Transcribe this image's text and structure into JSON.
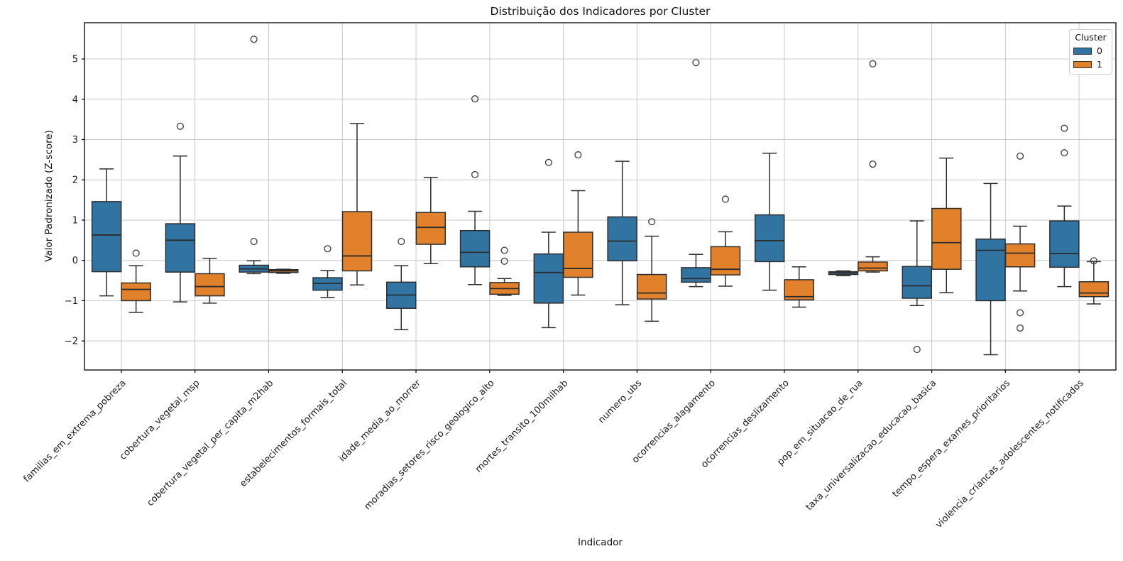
{
  "chart_data": {
    "type": "boxplot",
    "title": "Distribuição dos Indicadores por Cluster",
    "xlabel": "Indicador",
    "ylabel": "Valor Padronizado (Z-score)",
    "ylim": [
      -2.72,
      5.9
    ],
    "yticks": [
      5,
      4,
      3,
      2,
      1,
      0,
      -1,
      -2
    ],
    "grid": true,
    "colors": {
      "cluster0": "#3274A1",
      "cluster1": "#E1812C",
      "grid": "#c9c9c9",
      "spine": "#000000",
      "box_edge": "#2d2d2d",
      "flier_edge": "#3a3a3a",
      "text": "#1a1a1a"
    },
    "legend": {
      "title": "Cluster",
      "position": "upper right",
      "entries": [
        {
          "label": "0",
          "color": "#3274A1"
        },
        {
          "label": "1",
          "color": "#E1812C"
        }
      ]
    },
    "categories": [
      "familias_em_extrema_pobreza",
      "cobertura_vegetal_msp",
      "cobertura_vegetal_per_capita_m2hab",
      "estabelecimentos_formais_total",
      "idade_media_ao_morrer",
      "moradias_setores_risco_geologico_alto",
      "mortes_transito_100milhab",
      "numero_ubs",
      "ocorrencias_alagamento",
      "ocorrencias_deslizamento",
      "pop_em_situacao_de_rua",
      "taxa_universalizacao_educacao_basica",
      "tempo_espera_exames_prioritarios",
      "violencia_criancas_adolescentes_notificados"
    ],
    "series": [
      {
        "name": "0",
        "color": "#3274A1",
        "boxes": [
          {
            "whislo": -0.88,
            "q1": -0.28,
            "med": 0.63,
            "q3": 1.46,
            "whishi": 2.27,
            "fliers": []
          },
          {
            "whislo": -1.03,
            "q1": -0.29,
            "med": 0.5,
            "q3": 0.91,
            "whishi": 2.59,
            "fliers": [
              3.33
            ]
          },
          {
            "whislo": -0.33,
            "q1": -0.29,
            "med": -0.21,
            "q3": -0.12,
            "whishi": -0.01,
            "fliers": [
              5.49,
              0.47
            ]
          },
          {
            "whislo": -0.92,
            "q1": -0.74,
            "med": -0.57,
            "q3": -0.43,
            "whishi": -0.25,
            "fliers": [
              0.29
            ]
          },
          {
            "whislo": -1.72,
            "q1": -1.19,
            "med": -0.86,
            "q3": -0.54,
            "whishi": -0.13,
            "fliers": [
              0.47
            ]
          },
          {
            "whislo": -0.6,
            "q1": -0.16,
            "med": 0.2,
            "q3": 0.74,
            "whishi": 1.22,
            "fliers": [
              4.01,
              2.13
            ]
          },
          {
            "whislo": -1.67,
            "q1": -1.06,
            "med": -0.3,
            "q3": 0.16,
            "whishi": 0.7,
            "fliers": [
              2.43
            ]
          },
          {
            "whislo": -1.1,
            "q1": -0.01,
            "med": 0.48,
            "q3": 1.08,
            "whishi": 2.46,
            "fliers": []
          },
          {
            "whislo": -0.65,
            "q1": -0.54,
            "med": -0.45,
            "q3": -0.18,
            "whishi": 0.15,
            "fliers": [
              4.91
            ]
          },
          {
            "whislo": -0.74,
            "q1": -0.03,
            "med": 0.49,
            "q3": 1.13,
            "whishi": 2.66,
            "fliers": []
          },
          {
            "whislo": -0.38,
            "q1": -0.35,
            "med": -0.31,
            "q3": -0.28,
            "whishi": -0.26,
            "fliers": []
          },
          {
            "whislo": -1.12,
            "q1": -0.94,
            "med": -0.63,
            "q3": -0.15,
            "whishi": 0.98,
            "fliers": [
              -2.21
            ]
          },
          {
            "whislo": -2.34,
            "q1": -1.0,
            "med": 0.25,
            "q3": 0.53,
            "whishi": 1.91,
            "fliers": []
          },
          {
            "whislo": -0.65,
            "q1": -0.17,
            "med": 0.17,
            "q3": 0.98,
            "whishi": 1.35,
            "fliers": [
              3.28,
              2.67
            ]
          }
        ]
      },
      {
        "name": "1",
        "color": "#E1812C",
        "boxes": [
          {
            "whislo": -1.29,
            "q1": -1.0,
            "med": -0.72,
            "q3": -0.56,
            "whishi": -0.13,
            "fliers": [
              0.18
            ]
          },
          {
            "whislo": -1.06,
            "q1": -0.88,
            "med": -0.65,
            "q3": -0.33,
            "whishi": 0.05,
            "fliers": []
          },
          {
            "whislo": -0.32,
            "q1": -0.3,
            "med": -0.26,
            "q3": -0.23,
            "whishi": -0.22,
            "fliers": []
          },
          {
            "whislo": -0.61,
            "q1": -0.26,
            "med": 0.11,
            "q3": 1.21,
            "whishi": 3.4,
            "fliers": []
          },
          {
            "whislo": -0.08,
            "q1": 0.4,
            "med": 0.82,
            "q3": 1.19,
            "whishi": 2.06,
            "fliers": []
          },
          {
            "whislo": -0.87,
            "q1": -0.84,
            "med": -0.7,
            "q3": -0.55,
            "whishi": -0.45,
            "fliers": [
              0.25,
              -0.02
            ]
          },
          {
            "whislo": -0.86,
            "q1": -0.42,
            "med": -0.2,
            "q3": 0.7,
            "whishi": 1.73,
            "fliers": [
              2.62
            ]
          },
          {
            "whislo": -1.51,
            "q1": -0.96,
            "med": -0.81,
            "q3": -0.35,
            "whishi": 0.6,
            "fliers": [
              0.96
            ]
          },
          {
            "whislo": -0.64,
            "q1": -0.36,
            "med": -0.22,
            "q3": 0.34,
            "whishi": 0.71,
            "fliers": [
              1.52
            ]
          },
          {
            "whislo": -1.16,
            "q1": -0.98,
            "med": -0.9,
            "q3": -0.48,
            "whishi": -0.16,
            "fliers": []
          },
          {
            "whislo": -0.29,
            "q1": -0.26,
            "med": -0.19,
            "q3": -0.04,
            "whishi": 0.09,
            "fliers": [
              4.88,
              2.39
            ]
          },
          {
            "whislo": -0.8,
            "q1": -0.22,
            "med": 0.44,
            "q3": 1.29,
            "whishi": 2.54,
            "fliers": []
          },
          {
            "whislo": -0.76,
            "q1": -0.16,
            "med": 0.18,
            "q3": 0.41,
            "whishi": 0.85,
            "fliers": [
              2.59,
              -1.3,
              -1.68
            ]
          },
          {
            "whislo": -1.08,
            "q1": -0.9,
            "med": -0.81,
            "q3": -0.53,
            "whishi": -0.03,
            "fliers": [
              -0.01
            ]
          }
        ]
      }
    ]
  }
}
